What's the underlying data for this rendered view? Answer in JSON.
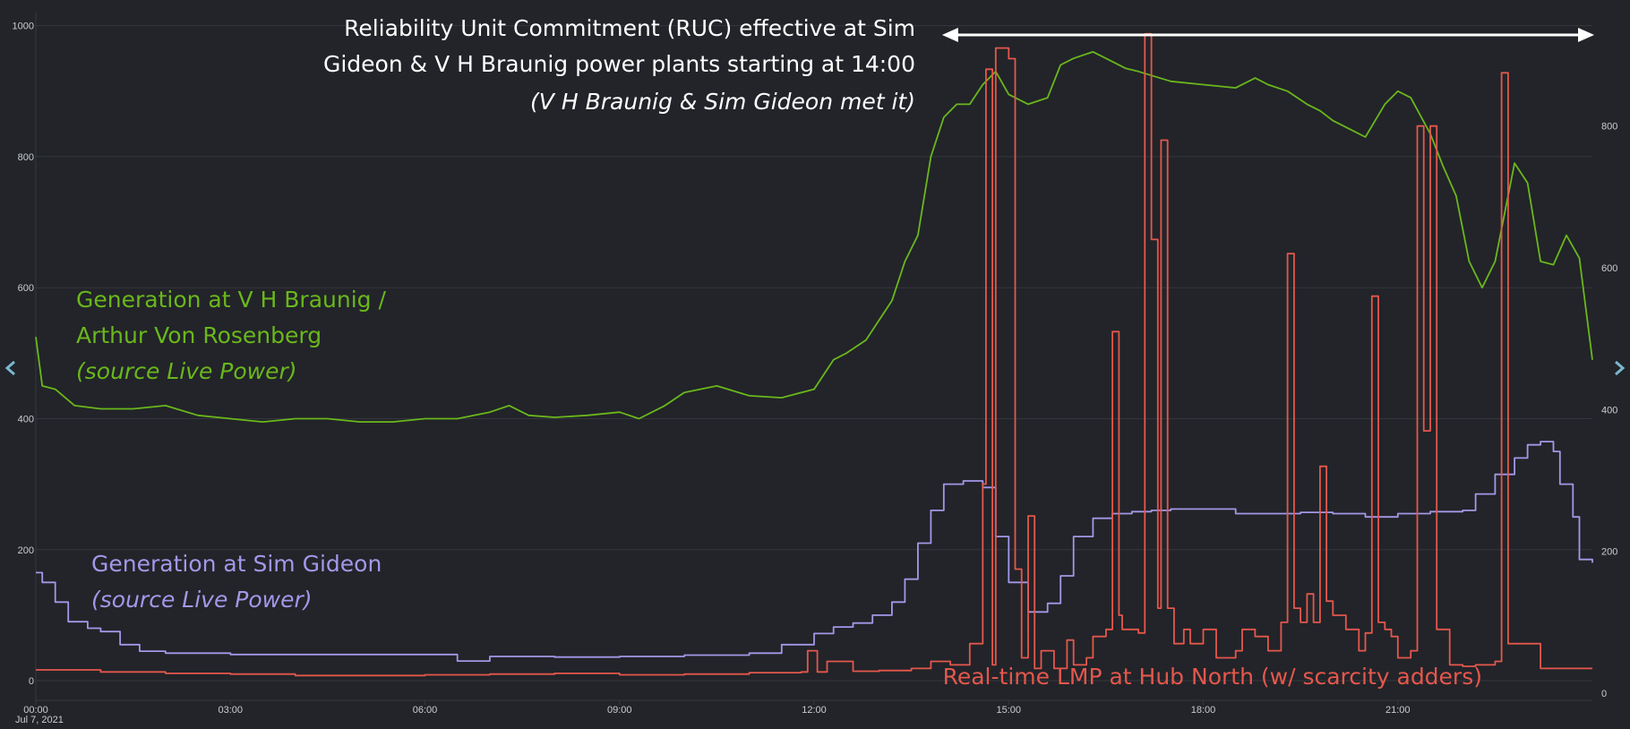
{
  "colors": {
    "background": "#222429",
    "grid": "#34373d",
    "tick_text": "#c9ccd1",
    "green_series": "#6ab71c",
    "purple_series": "#a497e8",
    "red_series": "#e5574c",
    "arrow": "#ffffff",
    "nav_arrow": "#79b9cf"
  },
  "icons": {
    "nav_left": "chevron-left-icon",
    "nav_right": "chevron-right-icon",
    "range_arrow": "double-arrow-icon"
  },
  "annotations": {
    "ruc_line1": "Reliability Unit Commitment (RUC) effective at Sim",
    "ruc_line2": "Gideon & V H Braunig power plants starting at 14:00",
    "ruc_line3": "(V H Braunig & Sim Gideon met it)",
    "green_line1": "Generation at V H Braunig /",
    "green_line2": "Arthur Von Rosenberg",
    "green_line3": "(source Live Power)",
    "purple_line1": "Generation at Sim Gideon",
    "purple_line2": "(source Live Power)",
    "red_line1": "Real-time LMP at Hub North (w/ scarcity adders)"
  },
  "chart_data": {
    "type": "line",
    "x_unit": "hour of day, Jul 7, 2021",
    "x_date_label": "Jul 7, 2021",
    "xlim": [
      0,
      24
    ],
    "x_ticks": [
      {
        "v": 0,
        "label": "00:00"
      },
      {
        "v": 3,
        "label": "03:00"
      },
      {
        "v": 6,
        "label": "06:00"
      },
      {
        "v": 9,
        "label": "09:00"
      },
      {
        "v": 12,
        "label": "12:00"
      },
      {
        "v": 15,
        "label": "15:00"
      },
      {
        "v": 18,
        "label": "18:00"
      },
      {
        "v": 21,
        "label": "21:00"
      }
    ],
    "y_left": {
      "lim": [
        -30,
        1020
      ],
      "ticks": [
        0,
        200,
        400,
        600,
        800,
        1000
      ]
    },
    "y_right": {
      "lim": [
        -10,
        960
      ],
      "ticks": [
        0,
        200,
        400,
        600,
        800
      ]
    },
    "grid": true,
    "ruc_range": [
      14.0,
      24.0
    ],
    "series": [
      {
        "axis": "left",
        "color": "#6ab71c",
        "style": "line",
        "points": [
          [
            0.0,
            525
          ],
          [
            0.1,
            450
          ],
          [
            0.3,
            445
          ],
          [
            0.6,
            420
          ],
          [
            1.0,
            415
          ],
          [
            1.5,
            415
          ],
          [
            2.0,
            420
          ],
          [
            2.5,
            405
          ],
          [
            3.0,
            400
          ],
          [
            3.5,
            395
          ],
          [
            4.0,
            400
          ],
          [
            4.5,
            400
          ],
          [
            5.0,
            395
          ],
          [
            5.5,
            395
          ],
          [
            6.0,
            400
          ],
          [
            6.5,
            400
          ],
          [
            7.0,
            410
          ],
          [
            7.3,
            420
          ],
          [
            7.6,
            405
          ],
          [
            8.0,
            402
          ],
          [
            8.5,
            405
          ],
          [
            9.0,
            410
          ],
          [
            9.3,
            400
          ],
          [
            9.7,
            420
          ],
          [
            10.0,
            440
          ],
          [
            10.5,
            450
          ],
          [
            11.0,
            435
          ],
          [
            11.5,
            432
          ],
          [
            12.0,
            445
          ],
          [
            12.3,
            490
          ],
          [
            12.5,
            500
          ],
          [
            12.8,
            520
          ],
          [
            13.0,
            550
          ],
          [
            13.2,
            580
          ],
          [
            13.4,
            640
          ],
          [
            13.6,
            680
          ],
          [
            13.8,
            800
          ],
          [
            14.0,
            860
          ],
          [
            14.2,
            880
          ],
          [
            14.4,
            880
          ],
          [
            14.6,
            910
          ],
          [
            14.8,
            930
          ],
          [
            15.0,
            895
          ],
          [
            15.3,
            880
          ],
          [
            15.6,
            890
          ],
          [
            15.8,
            940
          ],
          [
            16.0,
            950
          ],
          [
            16.3,
            960
          ],
          [
            16.5,
            950
          ],
          [
            16.8,
            935
          ],
          [
            17.0,
            930
          ],
          [
            17.5,
            915
          ],
          [
            18.0,
            910
          ],
          [
            18.5,
            905
          ],
          [
            18.8,
            920
          ],
          [
            19.0,
            910
          ],
          [
            19.3,
            900
          ],
          [
            19.6,
            880
          ],
          [
            19.8,
            870
          ],
          [
            20.0,
            855
          ],
          [
            20.3,
            840
          ],
          [
            20.5,
            830
          ],
          [
            20.8,
            880
          ],
          [
            21.0,
            900
          ],
          [
            21.2,
            890
          ],
          [
            21.5,
            835
          ],
          [
            21.7,
            785
          ],
          [
            21.9,
            740
          ],
          [
            22.1,
            640
          ],
          [
            22.3,
            600
          ],
          [
            22.5,
            640
          ],
          [
            22.8,
            790
          ],
          [
            23.0,
            760
          ],
          [
            23.2,
            640
          ],
          [
            23.4,
            635
          ],
          [
            23.6,
            680
          ],
          [
            23.8,
            645
          ],
          [
            24.0,
            490
          ]
        ]
      },
      {
        "axis": "left",
        "color": "#a497e8",
        "style": "step",
        "points": [
          [
            0.0,
            165
          ],
          [
            0.1,
            150
          ],
          [
            0.3,
            120
          ],
          [
            0.5,
            90
          ],
          [
            0.8,
            80
          ],
          [
            1.0,
            75
          ],
          [
            1.3,
            55
          ],
          [
            1.6,
            45
          ],
          [
            2.0,
            42
          ],
          [
            3.0,
            40
          ],
          [
            4.0,
            40
          ],
          [
            5.0,
            40
          ],
          [
            6.0,
            40
          ],
          [
            6.5,
            30
          ],
          [
            7.0,
            37
          ],
          [
            8.0,
            36
          ],
          [
            9.0,
            37
          ],
          [
            10.0,
            39
          ],
          [
            11.0,
            42
          ],
          [
            11.5,
            55
          ],
          [
            12.0,
            72
          ],
          [
            12.3,
            82
          ],
          [
            12.6,
            88
          ],
          [
            12.9,
            100
          ],
          [
            13.2,
            120
          ],
          [
            13.4,
            155
          ],
          [
            13.6,
            210
          ],
          [
            13.8,
            260
          ],
          [
            14.0,
            300
          ],
          [
            14.3,
            305
          ],
          [
            14.6,
            295
          ],
          [
            14.8,
            220
          ],
          [
            15.0,
            150
          ],
          [
            15.3,
            105
          ],
          [
            15.6,
            118
          ],
          [
            15.8,
            160
          ],
          [
            16.0,
            220
          ],
          [
            16.3,
            248
          ],
          [
            16.6,
            255
          ],
          [
            16.9,
            258
          ],
          [
            17.2,
            260
          ],
          [
            17.5,
            262
          ],
          [
            18.0,
            262
          ],
          [
            18.5,
            255
          ],
          [
            19.0,
            255
          ],
          [
            19.5,
            257
          ],
          [
            20.0,
            255
          ],
          [
            20.5,
            250
          ],
          [
            21.0,
            255
          ],
          [
            21.5,
            258
          ],
          [
            22.0,
            260
          ],
          [
            22.2,
            285
          ],
          [
            22.5,
            315
          ],
          [
            22.8,
            340
          ],
          [
            23.0,
            360
          ],
          [
            23.2,
            365
          ],
          [
            23.4,
            350
          ],
          [
            23.5,
            300
          ],
          [
            23.7,
            250
          ],
          [
            23.8,
            185
          ],
          [
            24.0,
            180
          ]
        ]
      },
      {
        "axis": "right",
        "color": "#e5574c",
        "style": "step",
        "points": [
          [
            0.0,
            33
          ],
          [
            1.0,
            30
          ],
          [
            2.0,
            28
          ],
          [
            3.0,
            27
          ],
          [
            4.0,
            25
          ],
          [
            5.0,
            25
          ],
          [
            6.0,
            26
          ],
          [
            7.0,
            27
          ],
          [
            8.0,
            28
          ],
          [
            9.0,
            26
          ],
          [
            10.0,
            27
          ],
          [
            11.0,
            29
          ],
          [
            11.8,
            30
          ],
          [
            11.9,
            60
          ],
          [
            12.05,
            30
          ],
          [
            12.2,
            45
          ],
          [
            12.4,
            45
          ],
          [
            12.6,
            31
          ],
          [
            13.0,
            32
          ],
          [
            13.5,
            35
          ],
          [
            13.8,
            45
          ],
          [
            14.1,
            40
          ],
          [
            14.3,
            40
          ],
          [
            14.4,
            70
          ],
          [
            14.6,
            295
          ],
          [
            14.65,
            880
          ],
          [
            14.75,
            40
          ],
          [
            14.8,
            910
          ],
          [
            15.0,
            895
          ],
          [
            15.1,
            175
          ],
          [
            15.2,
            50
          ],
          [
            15.3,
            250
          ],
          [
            15.4,
            35
          ],
          [
            15.5,
            60
          ],
          [
            15.7,
            35
          ],
          [
            15.9,
            75
          ],
          [
            16.0,
            40
          ],
          [
            16.2,
            50
          ],
          [
            16.3,
            80
          ],
          [
            16.5,
            90
          ],
          [
            16.6,
            510
          ],
          [
            16.7,
            110
          ],
          [
            16.75,
            90
          ],
          [
            17.0,
            85
          ],
          [
            17.1,
            930
          ],
          [
            17.2,
            640
          ],
          [
            17.3,
            120
          ],
          [
            17.35,
            780
          ],
          [
            17.45,
            120
          ],
          [
            17.55,
            70
          ],
          [
            17.7,
            90
          ],
          [
            17.8,
            70
          ],
          [
            18.0,
            90
          ],
          [
            18.2,
            50
          ],
          [
            18.5,
            60
          ],
          [
            18.6,
            90
          ],
          [
            18.8,
            80
          ],
          [
            19.0,
            60
          ],
          [
            19.2,
            100
          ],
          [
            19.3,
            620
          ],
          [
            19.4,
            120
          ],
          [
            19.5,
            100
          ],
          [
            19.6,
            140
          ],
          [
            19.7,
            100
          ],
          [
            19.8,
            320
          ],
          [
            19.9,
            130
          ],
          [
            20.0,
            110
          ],
          [
            20.2,
            90
          ],
          [
            20.4,
            60
          ],
          [
            20.5,
            85
          ],
          [
            20.6,
            560
          ],
          [
            20.7,
            100
          ],
          [
            20.8,
            90
          ],
          [
            20.9,
            80
          ],
          [
            21.0,
            50
          ],
          [
            21.2,
            60
          ],
          [
            21.3,
            800
          ],
          [
            21.4,
            370
          ],
          [
            21.5,
            800
          ],
          [
            21.6,
            90
          ],
          [
            21.8,
            40
          ],
          [
            22.0,
            38
          ],
          [
            22.2,
            40
          ],
          [
            22.5,
            45
          ],
          [
            22.6,
            875
          ],
          [
            22.7,
            70
          ],
          [
            23.0,
            70
          ],
          [
            23.2,
            35
          ],
          [
            24.0,
            35
          ]
        ]
      }
    ]
  }
}
